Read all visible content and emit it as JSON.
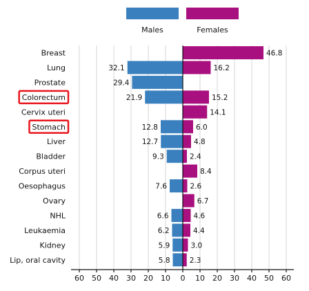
{
  "chart_data": {
    "type": "bar",
    "orientation": "horizontal-diverging",
    "title": "",
    "xlabel": "",
    "ylabel": "",
    "xlim": [
      -60,
      60
    ],
    "xticks": [
      -60,
      -50,
      -40,
      -30,
      -20,
      -10,
      0,
      10,
      20,
      30,
      40,
      50,
      60
    ],
    "xtick_labels": [
      "60",
      "50",
      "40",
      "30",
      "20",
      "10",
      "0",
      "10",
      "20",
      "30",
      "40",
      "50",
      "60"
    ],
    "grid": "vertical",
    "legend_placement": "top-center",
    "categories": [
      "Breast",
      "Lung",
      "Prostate",
      "Colorectum",
      "Cervix uteri",
      "Stomach",
      "Liver",
      "Bladder",
      "Corpus uteri",
      "Oesophagus",
      "Ovary",
      "NHL",
      "Leukaemia",
      "Kidney",
      "Lip, oral cavity"
    ],
    "highlighted": [
      "Colorectum",
      "Stomach"
    ],
    "series": [
      {
        "name": "Males",
        "side": "left",
        "color": "#3a80be",
        "values": [
          null,
          32.1,
          29.4,
          21.9,
          null,
          12.8,
          12.7,
          9.3,
          null,
          7.6,
          null,
          6.6,
          6.2,
          5.9,
          5.8
        ],
        "labels": [
          "",
          "32.1",
          "29.4",
          "21.9",
          "",
          "12.8",
          "12.7",
          "9.3",
          "",
          "7.6",
          "",
          "6.6",
          "6.2",
          "5.9",
          "5.8"
        ]
      },
      {
        "name": "Females",
        "side": "right",
        "color": "#a9107f",
        "values": [
          46.8,
          16.2,
          null,
          15.2,
          14.1,
          6.0,
          4.8,
          2.4,
          8.4,
          2.6,
          6.7,
          4.6,
          4.4,
          3.0,
          2.3
        ],
        "labels": [
          "46.8",
          "16.2",
          "",
          "15.2",
          "14.1",
          "6.0",
          "4.8",
          "2.4",
          "8.4",
          "2.6",
          "6.7",
          "4.6",
          "4.4",
          "3.0",
          "2.3"
        ]
      }
    ]
  }
}
